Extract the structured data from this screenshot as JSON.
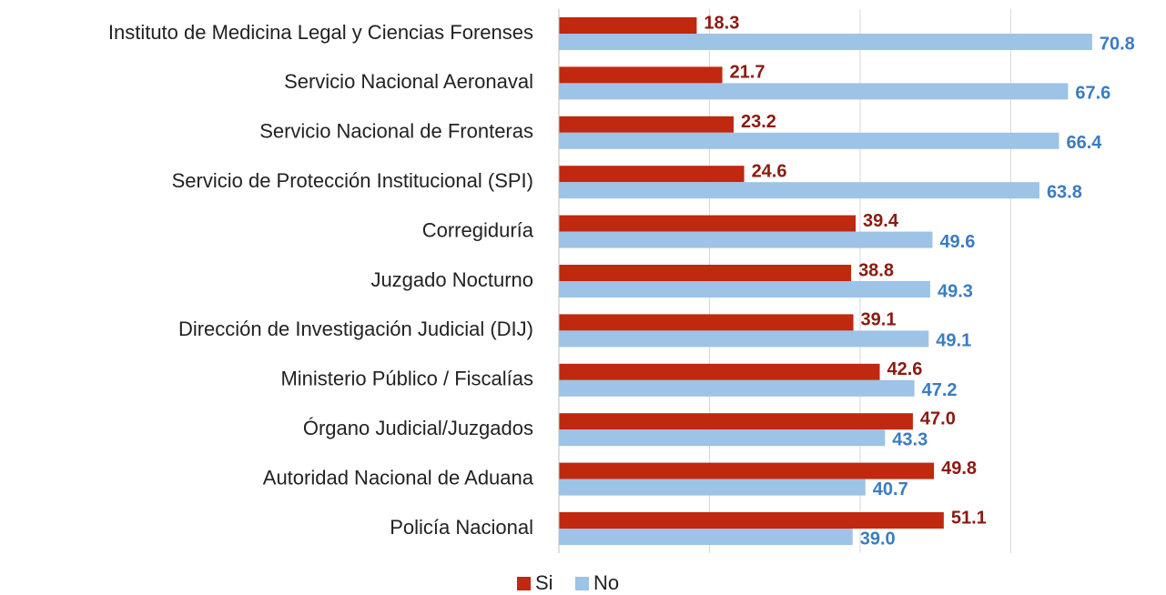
{
  "chart_data": {
    "type": "barh",
    "categories": [
      "Instituto de Medicina Legal y Ciencias Forenses",
      "Servicio Nacional Aeronaval",
      "Servicio Nacional de Fronteras",
      "Servicio de Protección Institucional (SPI)",
      "Corregiduría",
      "Juzgado Nocturno",
      "Dirección de Investigación Judicial (DIJ)",
      "Ministerio Público / Fiscalías",
      "Órgano Judicial/Juzgados",
      "Autoridad Nacional de Aduana",
      "Policía Nacional"
    ],
    "series": [
      {
        "name": "Si",
        "color": "#c0280f",
        "label_color": "#8b1a10",
        "values": [
          18.3,
          21.7,
          23.2,
          24.6,
          39.4,
          38.8,
          39.1,
          42.6,
          47.0,
          49.8,
          51.1
        ],
        "value_labels": [
          "18.3",
          "21.7",
          "23.2",
          "24.6",
          "39.4",
          "38.8",
          "39.1",
          "42.6",
          "47.0",
          "49.8",
          "51.1"
        ]
      },
      {
        "name": "No",
        "color": "#9dc3e6",
        "label_color": "#3a7cc2",
        "values": [
          70.8,
          67.6,
          66.4,
          63.8,
          49.6,
          49.3,
          49.1,
          47.2,
          43.3,
          40.7,
          39.0
        ],
        "value_labels": [
          "70.8",
          "67.6",
          "66.4",
          "63.8",
          "49.6",
          "49.3",
          "49.1",
          "47.2",
          "43.3",
          "40.7",
          "39.0"
        ]
      }
    ],
    "xlim": [
      0,
      80
    ],
    "xticks": [
      0,
      20,
      40,
      60
    ],
    "grid": true,
    "legend": "bottom"
  }
}
